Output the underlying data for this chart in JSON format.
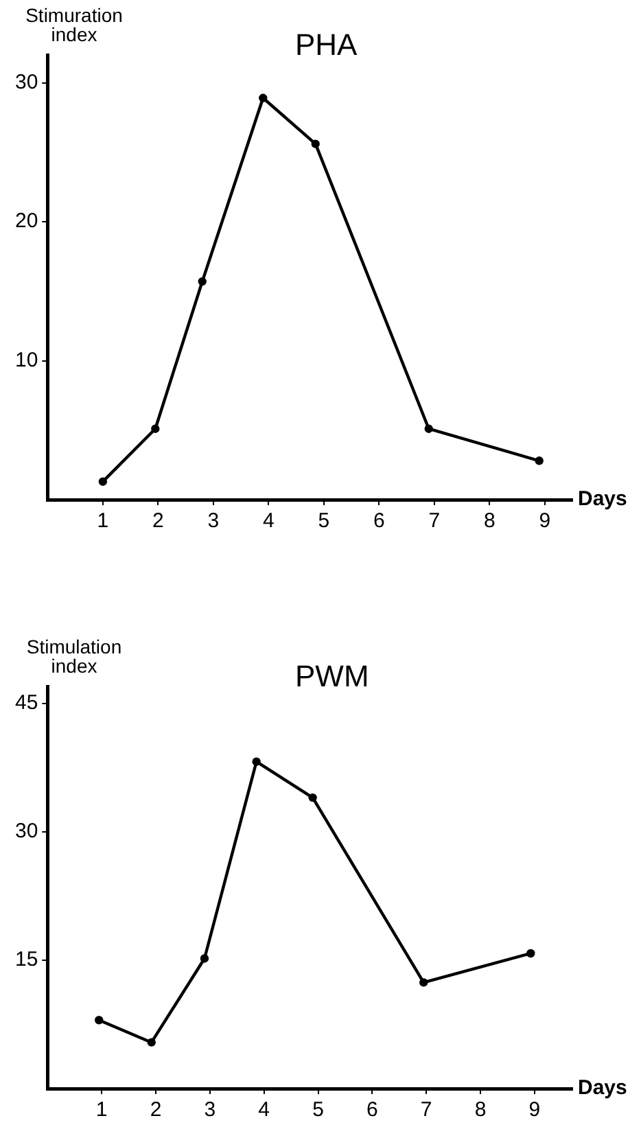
{
  "chart_data": [
    {
      "type": "line",
      "title": "PHA",
      "ylabel": "Stimuration index",
      "xlabel": "Days",
      "xlim": [
        0,
        9.5
      ],
      "xticks": [
        1,
        2,
        3,
        4,
        5,
        6,
        7,
        8,
        9
      ],
      "ylim": [
        0,
        32
      ],
      "yticks": [
        10,
        20,
        30
      ],
      "grid": false,
      "legend": false,
      "marker": "circle",
      "line_style": "solid",
      "series": [
        {
          "color": "#000000",
          "x": [
            1,
            1.95,
            2.8,
            3.9,
            4.85,
            6.9,
            8.9
          ],
          "values": [
            1.3,
            5.1,
            15.7,
            28.9,
            25.6,
            5.1,
            2.8
          ]
        }
      ]
    },
    {
      "type": "line",
      "title": "PWM",
      "ylabel": "Stimulation index",
      "xlabel": "Days",
      "xlim": [
        0,
        9.7
      ],
      "xticks": [
        1,
        2,
        3,
        4,
        5,
        6,
        7,
        8,
        9
      ],
      "ylim": [
        0,
        47
      ],
      "yticks": [
        15,
        30,
        45
      ],
      "grid": false,
      "legend": false,
      "marker": "circle",
      "line_style": "solid",
      "series": [
        {
          "color": "#000000",
          "x": [
            0.95,
            1.92,
            2.9,
            3.86,
            4.9,
            6.95,
            8.93
          ],
          "values": [
            8.0,
            5.4,
            15.2,
            38.2,
            34.0,
            12.4,
            15.8
          ]
        }
      ]
    }
  ]
}
